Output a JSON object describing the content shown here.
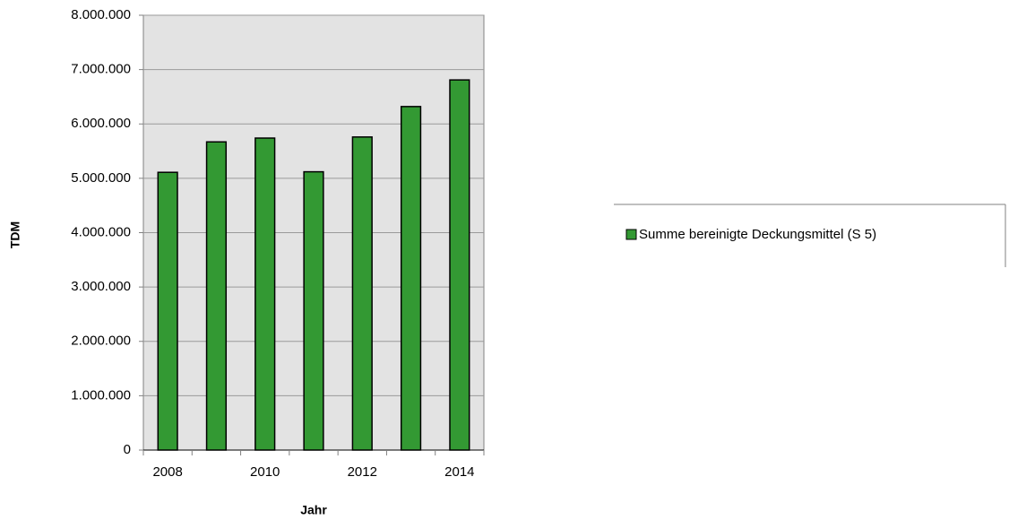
{
  "chart_data": {
    "type": "bar",
    "categories": [
      "2008",
      null,
      "2010",
      null,
      "2012",
      null,
      "2014"
    ],
    "series": [
      {
        "name": "Summe bereinigte Deckungsmittel (S 5)",
        "color": "#339933",
        "values": [
          5110000,
          5670000,
          5740000,
          5120000,
          5760000,
          6320000,
          6810000
        ]
      }
    ],
    "ylim": [
      0,
      8000000
    ],
    "yticks": [
      0,
      {
        "value": 1000000,
        "label": "1.000.000"
      },
      {
        "value": 2000000,
        "label": "2.000.000"
      },
      {
        "value": 3000000,
        "label": "3.000.000"
      },
      {
        "value": 4000000,
        "label": "4.000.000"
      },
      {
        "value": 5000000,
        "label": "5.000.000"
      },
      {
        "value": 6000000,
        "label": "6.000.000"
      },
      {
        "value": 7000000,
        "label": "7.000.000"
      },
      {
        "value": 8000000,
        "label": "8.000.000"
      }
    ],
    "xlabel": "Jahr",
    "ylabel": "TDM",
    "grid": true,
    "legend": "right"
  }
}
